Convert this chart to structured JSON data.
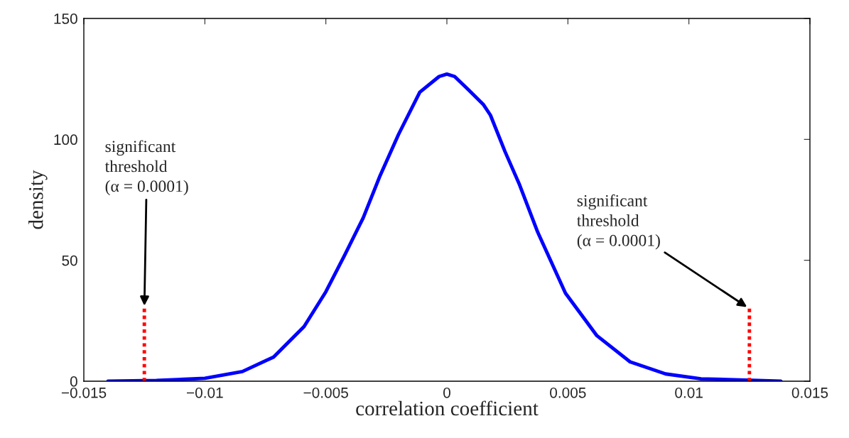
{
  "chart_data": {
    "type": "line",
    "xlabel": "correlation coefficient",
    "ylabel": "density",
    "xlim": [
      -0.015,
      0.015
    ],
    "ylim": [
      0,
      150
    ],
    "xticks": [
      {
        "value": -0.015,
        "label": "−0.015"
      },
      {
        "value": -0.01,
        "label": "−0.01"
      },
      {
        "value": -0.005,
        "label": "−0.005"
      },
      0,
      0.005,
      0.01,
      0.015
    ],
    "yticks": [
      0,
      50,
      100,
      150
    ],
    "grid": false,
    "marker": "none",
    "series": [
      {
        "color": "#0000ff",
        "line_style": "solid",
        "x": [
          -0.014,
          -0.012,
          -0.01,
          -0.00845,
          -0.00716,
          -0.0059,
          -0.005,
          -0.00423,
          -0.00346,
          -0.00276,
          -0.002,
          -0.00112,
          -0.00032,
          0,
          0.00032,
          0.0009,
          0.0015,
          0.0018,
          0.0024,
          0.003,
          0.00375,
          0.0049,
          0.0062,
          0.00757,
          0.00904,
          0.0105,
          0.0138
        ],
        "values": [
          0,
          0.3,
          1.2,
          4,
          10,
          22.6,
          37,
          52,
          67.5,
          85,
          102,
          119.5,
          126,
          127,
          126,
          120.4,
          114.5,
          110,
          95,
          81.3,
          61.7,
          36.4,
          18.8,
          8,
          3,
          1,
          0
        ]
      },
      {
        "color": "#ff0000",
        "line_style": "dotted",
        "x": [
          -0.0125,
          -0.0125
        ],
        "values": [
          0,
          30
        ]
      },
      {
        "color": "#ff0000",
        "line_style": "dotted",
        "x": [
          0.0125,
          0.0125
        ],
        "values": [
          0,
          30
        ]
      }
    ],
    "annotations": [
      {
        "text": "significant\nthreshold\n(α = 0.0001)",
        "x": -0.0125,
        "y": 30
      },
      {
        "text": "significant\nthreshold\n(α = 0.0001)",
        "x": 0.0125,
        "y": 30
      }
    ]
  }
}
